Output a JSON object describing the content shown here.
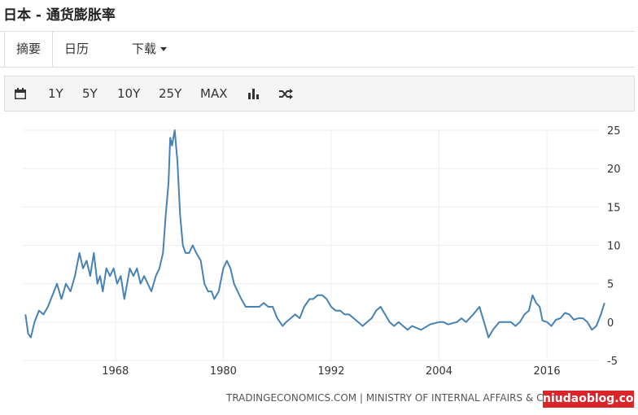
{
  "header": {
    "title": "日本 - 通货膨胀率"
  },
  "tabs": [
    "摘要",
    "日历",
    "下载"
  ],
  "toolbar": [
    "1Y",
    "5Y",
    "10Y",
    "25Y",
    "MAX"
  ],
  "chart_data": {
    "type": "line",
    "color": "#4682b4",
    "grid": true,
    "xlim": [
      1957.7,
      2022.6
    ],
    "xticks": [
      1968,
      1980,
      1992,
      2004,
      2016
    ],
    "ylim": [
      -5,
      25
    ],
    "yticks": [
      -5,
      0,
      5,
      10,
      15,
      20,
      25
    ],
    "x": [
      1958.0,
      1958.3,
      1958.6,
      1959,
      1959.5,
      1960,
      1960.5,
      1961,
      1961.5,
      1962,
      1962.5,
      1963,
      1963.5,
      1964,
      1964.4,
      1964.8,
      1965.2,
      1965.6,
      1966,
      1966.3,
      1966.6,
      1967,
      1967.4,
      1967.8,
      1968.2,
      1968.6,
      1969,
      1969.3,
      1969.6,
      1970,
      1970.4,
      1970.8,
      1971.2,
      1971.6,
      1972,
      1972.5,
      1972.9,
      1973.3,
      1973.6,
      1973.9,
      1974.1,
      1974.3,
      1974.6,
      1974.9,
      1975.2,
      1975.5,
      1975.8,
      1976.2,
      1976.6,
      1977,
      1977.5,
      1977.9,
      1978.3,
      1978.7,
      1979,
      1979.5,
      1980,
      1980.4,
      1980.8,
      1981.2,
      1981.6,
      1982,
      1982.5,
      1983,
      1983.5,
      1984,
      1984.5,
      1985,
      1985.5,
      1986,
      1986.6,
      1987,
      1987.5,
      1988,
      1988.5,
      1989,
      1989.6,
      1990,
      1990.5,
      1991,
      1991.5,
      1992,
      1992.5,
      1993,
      1993.5,
      1994,
      1994.5,
      1995,
      1995.5,
      1996,
      1996.5,
      1997,
      1997.5,
      1998,
      1998.5,
      1999,
      1999.5,
      2000,
      2000.5,
      2001,
      2002,
      2003,
      2004,
      2004.5,
      2005,
      2006,
      2006.5,
      2007,
      2007.8,
      2008.5,
      2009,
      2009.5,
      2010,
      2010.7,
      2011.5,
      2012,
      2012.5,
      2013,
      2013.5,
      2014,
      2014.4,
      2014.8,
      2015.2,
      2015.5,
      2016,
      2016.5,
      2017,
      2017.5,
      2018,
      2018.5,
      2019,
      2019.5,
      2020,
      2020.5,
      2021,
      2021.5,
      2022,
      2022.4
    ],
    "values": [
      1,
      -1.5,
      -2,
      0,
      1.5,
      1,
      2,
      3.5,
      5,
      3,
      5,
      4,
      6,
      9,
      7,
      8,
      6,
      9,
      5,
      6,
      4,
      7,
      6,
      7,
      5,
      6,
      3,
      5,
      7,
      6,
      7,
      5,
      6,
      5,
      4,
      6,
      7,
      9,
      14,
      18,
      24,
      23,
      25,
      21,
      14,
      10,
      9,
      9,
      10,
      9,
      8,
      5,
      4,
      4,
      3,
      4,
      7,
      8,
      7,
      5,
      4,
      3,
      2,
      2,
      2,
      2,
      2.5,
      2,
      2,
      0.5,
      -0.5,
      0,
      0.5,
      1,
      0.5,
      2,
      3,
      3,
      3.5,
      3.5,
      3,
      2,
      1.5,
      1.5,
      1,
      1,
      0.5,
      0,
      -0.5,
      0,
      0.5,
      1.5,
      2,
      1,
      0,
      -0.5,
      0,
      -0.5,
      -1,
      -0.5,
      -1,
      -0.3,
      0,
      0,
      -0.3,
      0,
      0.5,
      0,
      1,
      2,
      0,
      -2,
      -1,
      0,
      0,
      0,
      -0.5,
      0,
      1,
      1.5,
      3.5,
      2.5,
      2,
      0.2,
      0,
      -0.5,
      0.3,
      0.5,
      1.2,
      1,
      0.3,
      0.5,
      0.5,
      0,
      -1,
      -0.5,
      1,
      2.5
    ]
  },
  "footer": "TRADINGECONOMICS.COM | MINISTRY OF INTERNAL AFFAIRS & COMMUNICATIONS",
  "watermark": "niudaoblog.com"
}
